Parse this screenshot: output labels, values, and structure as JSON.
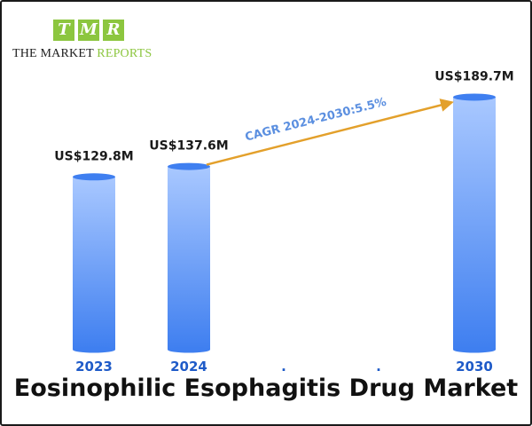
{
  "logo": {
    "letters": [
      "T",
      "M",
      "R"
    ],
    "name_part1": "THE MARKET ",
    "name_part2": "REPORTS",
    "accent_color": "#8cc63f"
  },
  "chart_data": {
    "type": "bar",
    "title": "Eosinophilic Esophagitis Drug Market",
    "categories": [
      "2023",
      "2024",
      ".",
      ".",
      "2030"
    ],
    "values": [
      129.8,
      137.6,
      null,
      null,
      189.7
    ],
    "value_labels": [
      "US$129.8M",
      "US$137.6M",
      "",
      "",
      "US$189.7M"
    ],
    "unit": "US$ M",
    "annotation": {
      "text": "CAGR 2024-2030:5.5%",
      "from": "2024",
      "to": "2030"
    },
    "colors": {
      "bar_top": "#a9c8ff",
      "bar_bottom": "#3f7ff0",
      "arrow": "#e3a02b",
      "annotation": "#5b8fe0",
      "category": "#1f5bc8"
    },
    "grid": false,
    "legend": "none"
  }
}
